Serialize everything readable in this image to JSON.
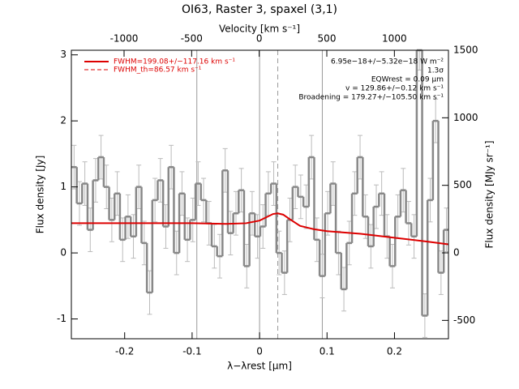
{
  "chart_data": {
    "type": "step",
    "title": "OI63, Raster 3, spaxel (3,1)",
    "x_label": "λ−λrest [μm]",
    "y_label": "Flux density [Jy]",
    "y2_label": "Flux density [MJy sr⁻¹]",
    "x2_label": "Velocity [km s⁻¹]",
    "xlim": [
      -0.279,
      0.28
    ],
    "xticks": [
      -0.2,
      -0.1,
      0.0,
      0.1,
      0.2
    ],
    "x2lim": [
      -1390,
      1400
    ],
    "x2ticks": [
      -1000,
      -500,
      0,
      500,
      1000
    ],
    "ylim": [
      -1.3,
      3.07
    ],
    "yticks": [
      -1,
      0,
      1,
      2,
      3
    ],
    "y2lim": [
      -636,
      1500
    ],
    "y2ticks": [
      -500,
      0,
      500,
      1000,
      1500
    ],
    "color": "#888888",
    "error_color": "#bbbbbb",
    "error": 0.33,
    "x": [
      -0.275,
      -0.267,
      -0.259,
      -0.251,
      -0.243,
      -0.235,
      -0.227,
      -0.219,
      -0.211,
      -0.203,
      -0.195,
      -0.187,
      -0.179,
      -0.171,
      -0.163,
      -0.155,
      -0.147,
      -0.139,
      -0.131,
      -0.123,
      -0.115,
      -0.107,
      -0.099,
      -0.091,
      -0.083,
      -0.075,
      -0.067,
      -0.059,
      -0.051,
      -0.043,
      -0.035,
      -0.027,
      -0.019,
      -0.011,
      -0.003,
      0.005,
      0.013,
      0.021,
      0.029,
      0.037,
      0.045,
      0.053,
      0.061,
      0.069,
      0.077,
      0.085,
      0.093,
      0.101,
      0.109,
      0.117,
      0.125,
      0.133,
      0.141,
      0.149,
      0.157,
      0.165,
      0.173,
      0.181,
      0.189,
      0.197,
      0.205,
      0.213,
      0.221,
      0.229,
      0.237,
      0.245,
      0.253,
      0.261,
      0.269,
      0.277
    ],
    "values": [
      1.3,
      0.75,
      1.05,
      0.35,
      1.1,
      1.45,
      1.0,
      0.5,
      0.9,
      0.2,
      0.55,
      0.25,
      1.0,
      0.15,
      -0.6,
      0.8,
      1.1,
      0.4,
      1.3,
      0.0,
      0.9,
      0.2,
      0.5,
      1.05,
      0.8,
      0.45,
      0.1,
      -0.05,
      1.25,
      0.3,
      0.6,
      0.95,
      -0.2,
      0.6,
      0.25,
      0.4,
      0.9,
      1.05,
      0.0,
      -0.3,
      0.5,
      1.0,
      0.85,
      0.7,
      1.45,
      0.2,
      -0.35,
      0.6,
      1.05,
      0.0,
      -0.55,
      0.15,
      0.9,
      1.45,
      0.55,
      0.1,
      0.7,
      0.9,
      0.25,
      -0.2,
      0.55,
      0.95,
      0.45,
      0.25,
      3.1,
      -0.95,
      0.8,
      2.0,
      -0.3,
      0.35
    ],
    "fit": {
      "name": "FWHM=199.08+/−117.16 km s⁻¹",
      "color": "#dd0000",
      "x": [
        -0.279,
        -0.2,
        -0.1,
        -0.05,
        -0.02,
        0.0,
        0.01,
        0.02,
        0.027,
        0.035,
        0.045,
        0.06,
        0.08,
        0.1,
        0.15,
        0.2,
        0.25,
        0.28
      ],
      "values": [
        0.45,
        0.45,
        0.45,
        0.44,
        0.45,
        0.49,
        0.54,
        0.59,
        0.6,
        0.58,
        0.51,
        0.41,
        0.36,
        0.33,
        0.29,
        0.23,
        0.17,
        0.13
      ]
    },
    "fit_th_label": "FWHM_th=86.57 km s⁻¹",
    "vlines": [
      -0.093,
      0.0,
      0.093
    ],
    "dashed_vline": 0.027,
    "annotations": [
      "6.95e−18+/−5.32e−18 W m⁻²",
      "1.3σ",
      "EQWrest = 0.09 μm",
      "v = 129.86+/−0.12 km s⁻¹",
      "Broadening = 179.27+/−105.50 km s⁻¹"
    ]
  }
}
